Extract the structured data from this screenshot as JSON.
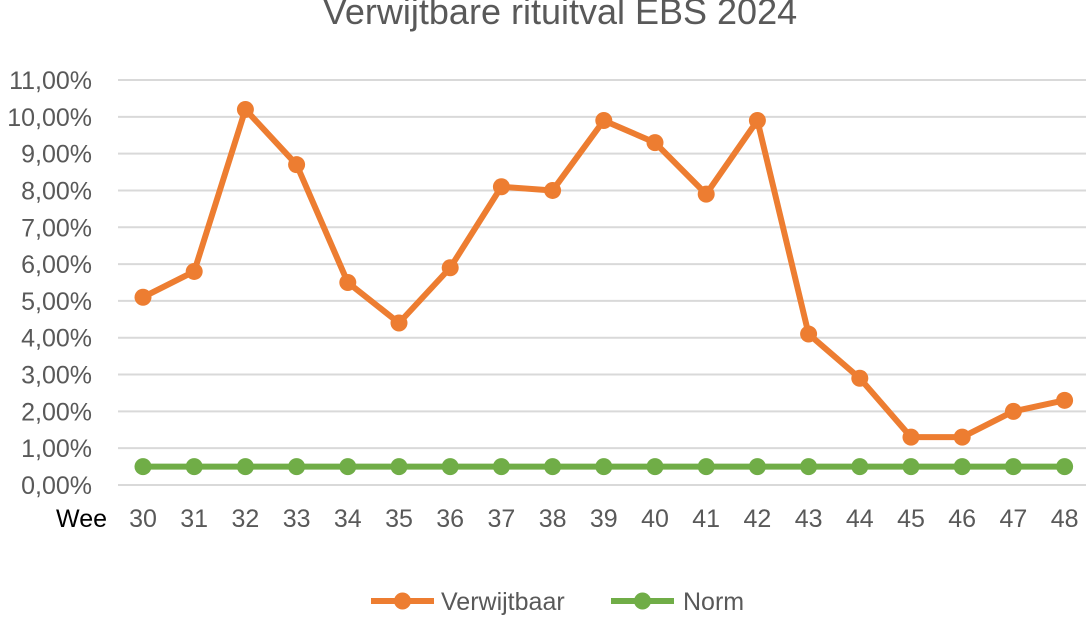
{
  "chart_data": {
    "type": "line",
    "title": "Verwijtbare rituitval EBS 2024",
    "x_axis_first_label": "Wee",
    "categories": [
      "30",
      "31",
      "32",
      "33",
      "34",
      "35",
      "36",
      "37",
      "38",
      "39",
      "40",
      "41",
      "42",
      "43",
      "44",
      "45",
      "46",
      "47",
      "48"
    ],
    "y_ticks": [
      "0,00%",
      "1,00%",
      "2,00%",
      "3,00%",
      "4,00%",
      "5,00%",
      "6,00%",
      "7,00%",
      "8,00%",
      "9,00%",
      "10,00%",
      "11,00%"
    ],
    "ylim": [
      0,
      11
    ],
    "grid": true,
    "legend_position": "bottom",
    "series": [
      {
        "name": "Verwijtbaar",
        "color": "#ED7D31",
        "values": [
          5.1,
          5.8,
          10.2,
          8.7,
          5.5,
          4.4,
          5.9,
          8.1,
          8.0,
          9.9,
          9.3,
          7.9,
          9.9,
          4.1,
          2.9,
          1.3,
          1.3,
          2.0,
          2.3
        ]
      },
      {
        "name": "Norm",
        "color": "#70AD47",
        "values": [
          0.5,
          0.5,
          0.5,
          0.5,
          0.5,
          0.5,
          0.5,
          0.5,
          0.5,
          0.5,
          0.5,
          0.5,
          0.5,
          0.5,
          0.5,
          0.5,
          0.5,
          0.5,
          0.5
        ]
      }
    ]
  }
}
